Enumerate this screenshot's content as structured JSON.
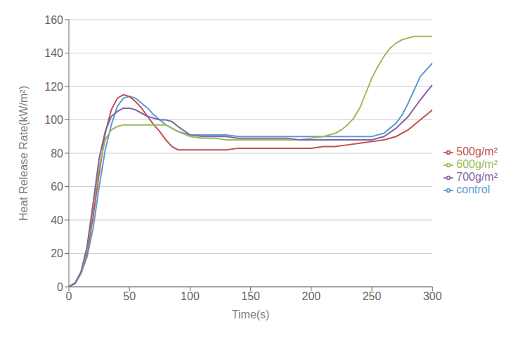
{
  "chart_data": {
    "type": "line",
    "xlabel": "Time(s)",
    "ylabel": "Heat Release Rate(kW/m²)",
    "xlim": [
      0,
      300
    ],
    "ylim": [
      0,
      160
    ],
    "xticks": [
      0,
      50,
      100,
      150,
      200,
      250,
      300
    ],
    "yticks": [
      0,
      20,
      40,
      60,
      80,
      100,
      120,
      140,
      160
    ],
    "grid": true,
    "legend": "right",
    "series": [
      {
        "name": "control",
        "color": "#5B9BD5",
        "x": [
          0,
          5,
          10,
          15,
          20,
          25,
          30,
          35,
          40,
          45,
          50,
          55,
          60,
          65,
          70,
          75,
          80,
          85,
          90,
          100,
          110,
          120,
          130,
          140,
          150,
          160,
          170,
          180,
          190,
          200,
          210,
          215,
          220,
          225,
          230,
          235,
          240,
          245,
          250,
          255,
          260,
          265,
          270,
          275,
          280,
          285,
          290,
          295,
          300
        ],
        "values": [
          0,
          2,
          8,
          18,
          35,
          60,
          82,
          97,
          108,
          113,
          114,
          113,
          110,
          107,
          103,
          100,
          97,
          95,
          93,
          91,
          91,
          91,
          91,
          90,
          90,
          90,
          90,
          90,
          90,
          90,
          90,
          90,
          90,
          90,
          90,
          90,
          90,
          90,
          90,
          91,
          92,
          95,
          98,
          103,
          110,
          118,
          126,
          130,
          134
        ]
      },
      {
        "name": "500g/m²",
        "color": "#C0504D",
        "x": [
          0,
          5,
          10,
          15,
          20,
          25,
          30,
          35,
          40,
          45,
          50,
          55,
          60,
          65,
          70,
          75,
          80,
          85,
          90,
          100,
          110,
          120,
          130,
          140,
          150,
          160,
          170,
          180,
          190,
          200,
          210,
          220,
          230,
          240,
          250,
          260,
          270,
          280,
          290,
          300
        ],
        "values": [
          0,
          2,
          8,
          20,
          42,
          68,
          92,
          106,
          113,
          115,
          114,
          111,
          107,
          102,
          97,
          93,
          88,
          84,
          82,
          82,
          82,
          82,
          82,
          83,
          83,
          83,
          83,
          83,
          83,
          83,
          84,
          84,
          85,
          86,
          87,
          88,
          90,
          94,
          100,
          106
        ]
      },
      {
        "name": "600g/m²",
        "color": "#9BBB59",
        "x": [
          0,
          5,
          10,
          15,
          20,
          25,
          30,
          35,
          40,
          45,
          50,
          55,
          60,
          65,
          70,
          75,
          80,
          85,
          90,
          100,
          110,
          120,
          130,
          140,
          150,
          160,
          170,
          180,
          190,
          200,
          210,
          215,
          220,
          225,
          230,
          235,
          240,
          245,
          250,
          255,
          260,
          265,
          270,
          275,
          280,
          285,
          290,
          295,
          300
        ],
        "values": [
          0,
          2,
          8,
          22,
          48,
          72,
          88,
          94,
          96,
          97,
          97,
          97,
          97,
          97,
          97,
          97,
          97,
          95,
          93,
          90,
          89,
          89,
          88,
          88,
          88,
          88,
          88,
          88,
          88,
          89,
          90,
          91,
          92,
          94,
          97,
          101,
          107,
          116,
          125,
          132,
          138,
          143,
          146,
          148,
          149,
          150,
          150,
          150,
          150
        ]
      },
      {
        "name": "700g/m²",
        "color": "#8064A2",
        "x": [
          0,
          5,
          10,
          15,
          20,
          25,
          30,
          35,
          40,
          45,
          50,
          55,
          60,
          65,
          70,
          75,
          80,
          85,
          90,
          100,
          110,
          120,
          130,
          140,
          150,
          160,
          170,
          180,
          190,
          200,
          210,
          220,
          230,
          240,
          250,
          260,
          270,
          280,
          290,
          300
        ],
        "values": [
          0,
          2,
          9,
          24,
          50,
          77,
          93,
          102,
          105,
          107,
          107,
          106,
          104,
          102,
          101,
          100,
          100,
          99,
          96,
          91,
          90,
          90,
          90,
          89,
          89,
          89,
          89,
          89,
          88,
          88,
          88,
          88,
          88,
          88,
          88,
          90,
          95,
          102,
          112,
          121
        ]
      }
    ]
  }
}
